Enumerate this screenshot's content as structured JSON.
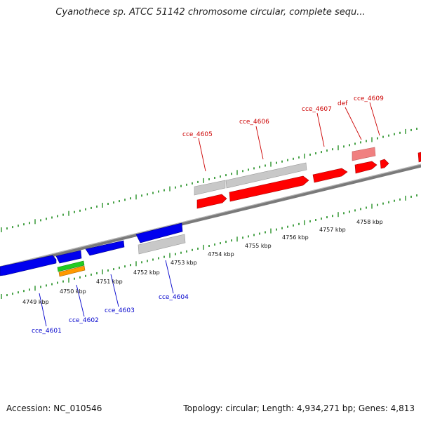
{
  "title": "Cyanothece sp. ATCC 51142 chromosome circular, complete sequ...",
  "footer": {
    "accession": "Accession: NC_010546",
    "summary": "Topology: circular; Length: 4,934,271 bp; Genes: 4,813"
  },
  "colors": {
    "plus_strand": "#ff0000",
    "minus_strand": "#0000ee",
    "pseudo": "#c0c0c0",
    "rna": "#f08080",
    "green_feature": "#22cc22",
    "orange_feature": "#ff9900",
    "ticks": "#1a8a1a",
    "backbone": "#808080",
    "plus_label": "#cc0000",
    "minus_label": "#0000cc"
  },
  "kbp_ticks": [
    "4749 kbp",
    "4750 kbp",
    "4751 kbp",
    "4752 kbp",
    "4753 kbp",
    "4754 kbp",
    "4755 kbp",
    "4756 kbp",
    "4757 kbp",
    "4758 kbp"
  ],
  "gene_labels": {
    "top": [
      "cce_4605",
      "cce_4606",
      "cce_4607",
      "def",
      "cce_4609"
    ],
    "bottom": [
      "cce_4601",
      "cce_4602",
      "cce_4603",
      "cce_4604"
    ]
  }
}
